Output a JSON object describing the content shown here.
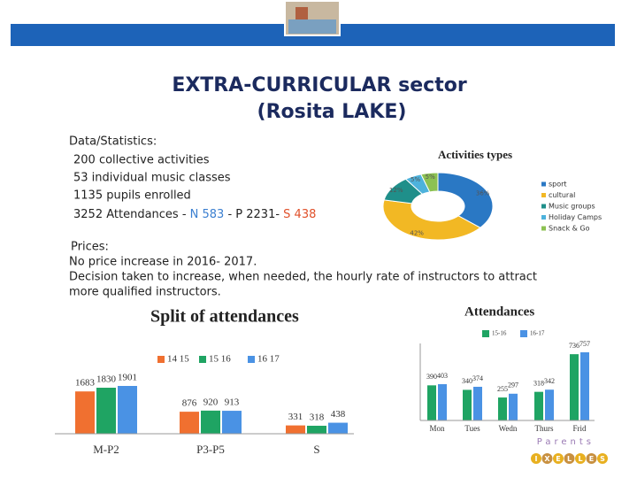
{
  "slide": {
    "title": [
      "EXTRA-CURRICULAR sector",
      "(Rosita LAKE)"
    ],
    "stats_heading": "Data/Statistics:",
    "stats": [
      "200 collective activities",
      "53 individual music classes",
      "1135 pupils enrolled"
    ],
    "attendance_line": [
      "3252 Attendances - ",
      "N 583",
      " - P 2231- ",
      "S 438"
    ],
    "prices_heading": "Prices:",
    "prices": [
      "No price increase in 2016- 2017.",
      "Decision taken to increase, when needed, the hourly rate of instructors to attract",
      "more qualified instructors."
    ]
  },
  "logo": {
    "top": "Parents",
    "letters": [
      "I",
      "X",
      "E",
      "L",
      "L",
      "E",
      "S"
    ]
  },
  "chart_data": [
    {
      "type": "pie",
      "title": "Activities types",
      "categories": [
        "sport",
        "cultural",
        "Music groups",
        "Holiday Camps",
        "Snack & Go"
      ],
      "values": [
        36,
        42,
        12,
        5,
        5
      ],
      "value_labels": [
        "36%",
        "42%",
        "12%",
        "5%",
        "5%"
      ],
      "colors": [
        "#2a78c4",
        "#f2b824",
        "#1f8f8a",
        "#4db2dc",
        "#8cc152"
      ],
      "donut": true
    },
    {
      "type": "bar",
      "title": "Split of attendances",
      "categories": [
        "M-P2",
        "P3-P5",
        "S"
      ],
      "series": [
        {
          "name": "14 15",
          "color": "#f07030",
          "values": [
            1683,
            876,
            331
          ]
        },
        {
          "name": "15 16",
          "color": "#1fa463",
          "values": [
            1830,
            920,
            318
          ]
        },
        {
          "name": "16 17",
          "color": "#4a92e4",
          "values": [
            1901,
            913,
            438
          ]
        }
      ]
    },
    {
      "type": "bar",
      "title": "Attendances",
      "categories": [
        "Mon",
        "Tues",
        "Wedn",
        "Thurs",
        "Frid"
      ],
      "series": [
        {
          "name": "15-16",
          "color": "#1fa463",
          "values": [
            390,
            340,
            255,
            318,
            736
          ]
        },
        {
          "name": "16-17",
          "color": "#4a92e4",
          "values": [
            403,
            374,
            297,
            342,
            757
          ]
        }
      ]
    }
  ]
}
